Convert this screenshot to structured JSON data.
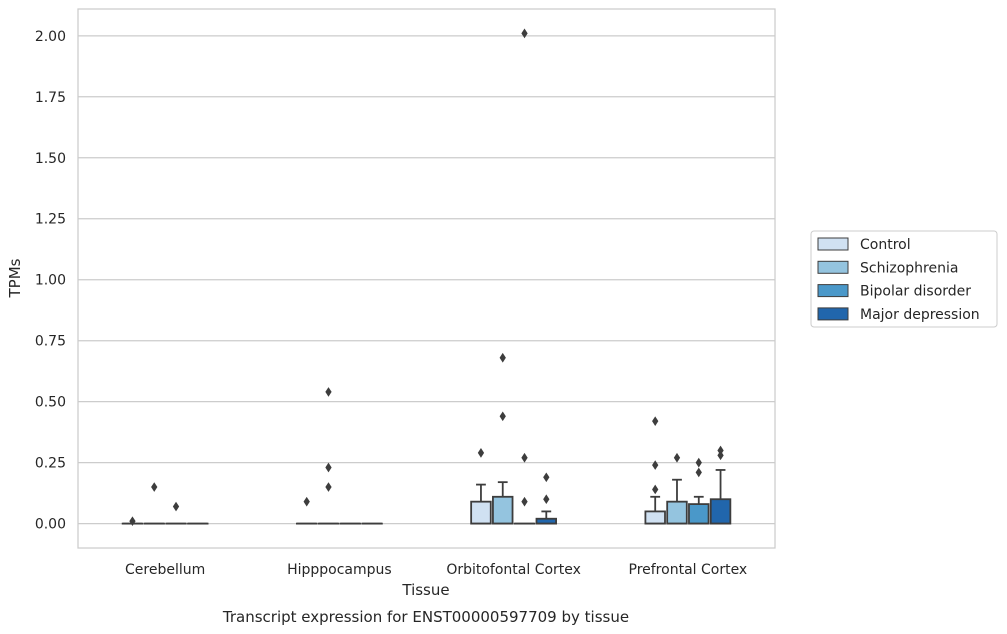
{
  "chart_data": {
    "type": "box",
    "title": "Transcript expression for ENST00000597709 by tissue",
    "xlabel": "Tissue",
    "ylabel": "TPMs",
    "ylim": [
      -0.1,
      2.11
    ],
    "yticks": [
      "0.00",
      "0.25",
      "0.50",
      "0.75",
      "1.00",
      "1.25",
      "1.50",
      "1.75",
      "2.00"
    ],
    "ytick_values": [
      0,
      0.25,
      0.5,
      0.75,
      1.0,
      1.25,
      1.5,
      1.75,
      2.0
    ],
    "grid": "horizontal",
    "legend_position": "right",
    "categories": [
      "Cerebellum",
      "Hipppocampus",
      "Orbitofontal Cortex",
      "Prefrontal Cortex"
    ],
    "series": [
      {
        "name": "Control",
        "color": "#d0e1f2",
        "boxes": [
          {
            "q1": 0,
            "median": 0,
            "q3": 0,
            "whisker_low": 0,
            "whisker_high": 0,
            "outliers": [
              0.01
            ]
          },
          {
            "q1": 0,
            "median": 0,
            "q3": 0,
            "whisker_low": 0,
            "whisker_high": 0,
            "outliers": [
              0.09
            ]
          },
          {
            "q1": 0,
            "median": 0,
            "q3": 0.09,
            "whisker_low": 0,
            "whisker_high": 0.16,
            "outliers": [
              0.29
            ]
          },
          {
            "q1": 0,
            "median": 0,
            "q3": 0.05,
            "whisker_low": 0,
            "whisker_high": 0.11,
            "outliers": [
              0.14,
              0.24,
              0.42
            ]
          }
        ]
      },
      {
        "name": "Schizophrenia",
        "color": "#94c4df",
        "boxes": [
          {
            "q1": 0,
            "median": 0,
            "q3": 0,
            "whisker_low": 0,
            "whisker_high": 0,
            "outliers": [
              0.15
            ]
          },
          {
            "q1": 0,
            "median": 0,
            "q3": 0,
            "whisker_low": 0,
            "whisker_high": 0,
            "outliers": [
              0.15,
              0.23,
              0.54
            ]
          },
          {
            "q1": 0,
            "median": 0,
            "q3": 0.11,
            "whisker_low": 0,
            "whisker_high": 0.17,
            "outliers": [
              0.44,
              0.68
            ]
          },
          {
            "q1": 0,
            "median": 0,
            "q3": 0.09,
            "whisker_low": 0,
            "whisker_high": 0.18,
            "outliers": [
              0.27
            ]
          }
        ]
      },
      {
        "name": "Bipolar disorder",
        "color": "#4a98c9",
        "boxes": [
          {
            "q1": 0,
            "median": 0,
            "q3": 0,
            "whisker_low": 0,
            "whisker_high": 0,
            "outliers": [
              0.07
            ]
          },
          {
            "q1": 0,
            "median": 0,
            "q3": 0,
            "whisker_low": 0,
            "whisker_high": 0,
            "outliers": []
          },
          {
            "q1": 0,
            "median": 0,
            "q3": 0,
            "whisker_low": 0,
            "whisker_high": 0,
            "outliers": [
              0.09,
              0.27,
              2.01
            ]
          },
          {
            "q1": 0,
            "median": 0,
            "q3": 0.08,
            "whisker_low": 0,
            "whisker_high": 0.11,
            "outliers": [
              0.21,
              0.25
            ]
          }
        ]
      },
      {
        "name": "Major depression",
        "color": "#2166ac",
        "boxes": [
          {
            "q1": 0,
            "median": 0,
            "q3": 0,
            "whisker_low": 0,
            "whisker_high": 0,
            "outliers": []
          },
          {
            "q1": 0,
            "median": 0,
            "q3": 0,
            "whisker_low": 0,
            "whisker_high": 0,
            "outliers": []
          },
          {
            "q1": 0,
            "median": 0,
            "q3": 0.02,
            "whisker_low": 0,
            "whisker_high": 0.05,
            "outliers": [
              0.1,
              0.19
            ]
          },
          {
            "q1": 0,
            "median": 0,
            "q3": 0.1,
            "whisker_low": 0,
            "whisker_high": 0.22,
            "outliers": [
              0.28,
              0.3
            ]
          }
        ]
      }
    ]
  }
}
